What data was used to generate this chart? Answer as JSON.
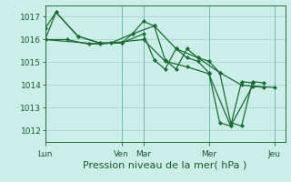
{
  "background_color": "#cceee8",
  "grid_color": "#aad8d2",
  "line_color": "#1a6b35",
  "marker_color": "#1a6b35",
  "xlabel": "Pression niveau de la mer( hPa )",
  "xlabel_fontsize": 8,
  "ylim": [
    1011.5,
    1017.5
  ],
  "yticks": [
    1012,
    1013,
    1014,
    1015,
    1016,
    1017
  ],
  "xtick_labels": [
    "Lun",
    "",
    "",
    "",
    "Ven",
    "Mar",
    "",
    "",
    "Mer",
    "",
    "",
    "Jeu"
  ],
  "day_labels": [
    "Lun",
    "Ven",
    "Mar",
    "Mer",
    "Jeu"
  ],
  "day_positions": [
    0,
    7,
    9,
    15,
    21
  ],
  "xlim": [
    0,
    22
  ],
  "series": [
    [
      0,
      1016.5,
      1,
      1017.2,
      3,
      1016.15,
      5,
      1015.85,
      7,
      1015.85,
      8,
      1016.25,
      9,
      1016.8,
      10,
      1016.6,
      11,
      1015.1,
      12,
      1014.7,
      13,
      1015.6,
      14,
      1015.2,
      15,
      1015.05,
      16,
      1014.55,
      17,
      1012.35,
      18,
      1012.2,
      19,
      1014.15,
      20,
      1014.1
    ],
    [
      0,
      1016.0,
      1,
      1017.2,
      3,
      1016.15,
      5,
      1015.85,
      7,
      1015.85,
      9,
      1016.25,
      10,
      1015.1,
      11,
      1014.7,
      12,
      1015.6,
      13,
      1015.2,
      14,
      1015.05,
      15,
      1014.55,
      16,
      1012.35,
      17,
      1012.2,
      18,
      1014.15,
      19,
      1014.1
    ],
    [
      0,
      1016.0,
      2,
      1016.0,
      4,
      1015.8,
      6,
      1015.85,
      8,
      1016.25,
      10,
      1016.6,
      12,
      1015.6,
      14,
      1015.2,
      16,
      1014.55,
      18,
      1014.0,
      20,
      1013.9
    ],
    [
      0,
      1016.0,
      5,
      1015.8,
      9,
      1016.0,
      11,
      1015.05,
      13,
      1014.8,
      15,
      1014.5,
      17,
      1012.2,
      19,
      1013.95,
      21,
      1013.9
    ]
  ]
}
